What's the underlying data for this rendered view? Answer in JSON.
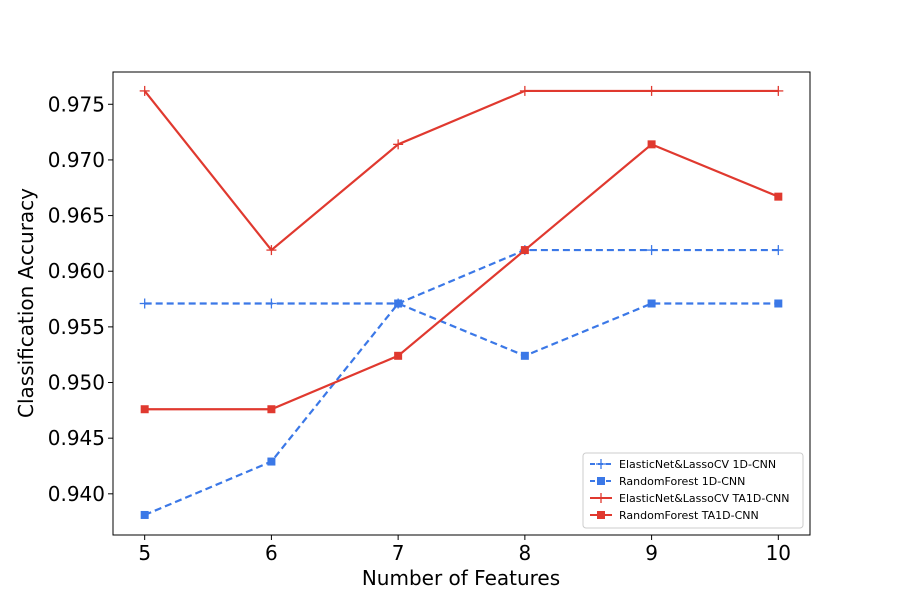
{
  "chart_data": {
    "type": "line",
    "title": "",
    "xlabel": "Number of Features",
    "ylabel": "Classification Accuracy",
    "x": [
      5,
      6,
      7,
      8,
      9,
      10
    ],
    "xticks": [
      "5",
      "6",
      "7",
      "8",
      "9",
      "10"
    ],
    "xlim": [
      4.75,
      10.25
    ],
    "yticks": [
      "0.940",
      "0.945",
      "0.950",
      "0.955",
      "0.960",
      "0.965",
      "0.970",
      "0.975"
    ],
    "ytick_values": [
      0.94,
      0.945,
      0.95,
      0.955,
      0.96,
      0.965,
      0.97,
      0.975
    ],
    "ylim": [
      0.9363,
      0.9779
    ],
    "grid": false,
    "legend_position": "bottom-right",
    "series": [
      {
        "name": "ElasticNet&LassoCV 1D-CNN",
        "values": [
          0.9571,
          0.9571,
          0.9571,
          0.9619,
          0.9619,
          0.9619
        ],
        "color": "#3b78e7",
        "line_style": "dashed",
        "marker": "plus"
      },
      {
        "name": "RandomForest 1D-CNN",
        "values": [
          0.9381,
          0.9429,
          0.9571,
          0.9524,
          0.9571,
          0.9571
        ],
        "color": "#3b78e7",
        "line_style": "dashed",
        "marker": "square"
      },
      {
        "name": "ElasticNet&LassoCV TA1D-CNN",
        "values": [
          0.9762,
          0.9619,
          0.9714,
          0.9762,
          0.9762,
          0.9762
        ],
        "color": "#e0392f",
        "line_style": "solid",
        "marker": "plus"
      },
      {
        "name": "RandomForest TA1D-CNN",
        "values": [
          0.9476,
          0.9476,
          0.9524,
          0.9619,
          0.9714,
          0.9667
        ],
        "color": "#e0392f",
        "line_style": "solid",
        "marker": "square"
      }
    ]
  }
}
